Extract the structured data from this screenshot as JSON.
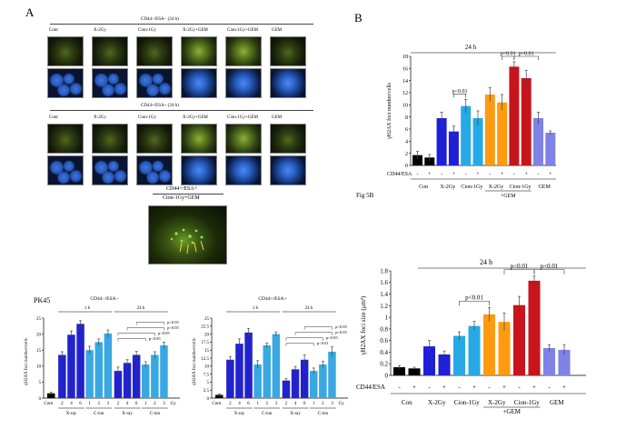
{
  "panelA": {
    "letter": "A",
    "group1_title": "CD44−/ESA− (24 h)",
    "group2_title": "CD44+/ESA+ (24 h)",
    "col_labels": [
      "Cont",
      "X-2Gy",
      "Cion-1Gy",
      "X-2Gy+GEM",
      "Cion-1Gy+GEM",
      "GEM"
    ],
    "big_caption_line1": "CD44+/ESA+",
    "big_caption_line2": "Cion-1Gy+GEM"
  },
  "pk45": {
    "label": "PK45",
    "left_title": "CD44−/ESA−",
    "right_title": "CD44+/ESA+",
    "time1": "1 h",
    "time2": "24 h",
    "ylabel": "γH2AX foci number/cells",
    "xgroups": [
      "X-ray",
      "C-ion",
      "X-ray",
      "C-ion"
    ],
    "control_label": "Cont",
    "gy_label": "Gy",
    "pval": "p<0.05",
    "pval_right": "p<0.01"
  },
  "panelB": {
    "letter": "B",
    "fig_label": "Fig 5B",
    "time_label": "24 h",
    "pm_label": "CD44/ESA",
    "top_ylabel": "γH2AX foci number/cells",
    "bottom_ylabel": "γH2AX foci size (μm²)",
    "groups": [
      "Con",
      "X-2Gy",
      "Cion-1Gy",
      "X-2Gy",
      "Cion-1Gy",
      "GEM"
    ],
    "gem_label": "+GEM",
    "pval": "p<0.01",
    "minus": "-",
    "plus": "+"
  },
  "chart_data": [
    {
      "type": "bar",
      "title": "24 h",
      "ylabel": "γH2AX foci number/cells",
      "ylim": [
        0,
        18
      ],
      "yticks": [
        0,
        2,
        4,
        6,
        8,
        10,
        12,
        14,
        16,
        18
      ],
      "categories": [
        "Con -",
        "Con +",
        "X-2Gy -",
        "X-2Gy +",
        "Cion-1Gy -",
        "Cion-1Gy +",
        "X-2Gy+GEM -",
        "X-2Gy+GEM +",
        "Cion-1Gy+GEM -",
        "Cion-1Gy+GEM +",
        "GEM -",
        "GEM +"
      ],
      "values": [
        1.7,
        1.3,
        7.8,
        5.6,
        9.8,
        7.8,
        11.7,
        10.4,
        16.3,
        14.4,
        7.8,
        5.4
      ],
      "errors": [
        0.6,
        0.5,
        1.0,
        0.9,
        1.1,
        1.2,
        1.1,
        1.3,
        0.8,
        1.3,
        1.0,
        0.3
      ],
      "colors": [
        "#000000",
        "#000000",
        "#1f1fd8",
        "#1f1fd8",
        "#27a9e6",
        "#27a9e6",
        "#ff9a11",
        "#ff9a11",
        "#c8141c",
        "#c8141c",
        "#7f82e6",
        "#7f82e6"
      ],
      "significance": [
        {
          "from": 3,
          "to": 4,
          "label": "p<0.01"
        },
        {
          "from": 7,
          "to": 8,
          "label": "p<0.01"
        },
        {
          "from": 8,
          "to": 10,
          "label": "p<0.01"
        }
      ],
      "grid": false
    },
    {
      "type": "bar",
      "title": "24 h",
      "ylabel": "γH2AX foci size (μm²)",
      "ylim": [
        0,
        1.8
      ],
      "yticks": [
        0,
        0.2,
        0.4,
        0.6,
        0.8,
        1,
        1.2,
        1.4,
        1.6,
        1.8
      ],
      "categories": [
        "Con -",
        "Con +",
        "X-2Gy -",
        "X-2Gy +",
        "Cion-1Gy -",
        "Cion-1Gy +",
        "X-2Gy+GEM -",
        "X-2Gy+GEM +",
        "Cion-1Gy+GEM -",
        "Cion-1Gy+GEM +",
        "GEM -",
        "GEM +"
      ],
      "values": [
        0.14,
        0.12,
        0.5,
        0.36,
        0.68,
        0.85,
        1.05,
        0.92,
        1.21,
        1.63,
        0.47,
        0.44
      ],
      "errors": [
        0.03,
        0.02,
        0.1,
        0.06,
        0.07,
        0.08,
        0.12,
        0.15,
        0.15,
        0.08,
        0.06,
        0.09
      ],
      "colors": [
        "#000000",
        "#000000",
        "#1f1fd8",
        "#1f1fd8",
        "#27a9e6",
        "#27a9e6",
        "#ff9a11",
        "#ff9a11",
        "#c8141c",
        "#c8141c",
        "#7f82e6",
        "#7f82e6"
      ],
      "significance": [
        {
          "from": 4,
          "to": 6,
          "label": "p<0.01"
        },
        {
          "from": 7,
          "to": 9,
          "label": "p<0.01"
        },
        {
          "from": 9,
          "to": 11,
          "label": "p<0.01"
        }
      ],
      "grid": false
    },
    {
      "type": "bar",
      "title": "CD44−/ESA−",
      "ylabel": "γH2AX foci number/cells",
      "ylim": [
        0,
        25
      ],
      "yticks": [
        0,
        5,
        10,
        15,
        20,
        25
      ],
      "categories": [
        "Cont",
        "2",
        "4",
        "6",
        "1",
        "2",
        "3",
        "2",
        "4",
        "6",
        "1",
        "2",
        "3"
      ],
      "values": [
        1.5,
        13.5,
        19.8,
        23.2,
        15.0,
        17.5,
        20.2,
        8.5,
        11.0,
        13.5,
        10.5,
        13.5,
        16.5
      ],
      "errors": [
        0.3,
        1.0,
        1.2,
        1.0,
        1.2,
        1.0,
        1.1,
        1.2,
        1.0,
        1.1,
        0.9,
        1.0,
        1.0
      ],
      "colors": [
        "#000000",
        "#2222cc",
        "#2222cc",
        "#2222cc",
        "#39a8e2",
        "#39a8e2",
        "#39a8e2",
        "#2222cc",
        "#2222cc",
        "#2222cc",
        "#39a8e2",
        "#39a8e2",
        "#39a8e2"
      ],
      "grid": false
    },
    {
      "type": "bar",
      "title": "CD44+/ESA+",
      "ylabel": "γH2AX foci number/cells",
      "ylim": [
        0,
        25
      ],
      "yticks": [
        0,
        2.5,
        5,
        7.5,
        10,
        12.5,
        15,
        17.5,
        20,
        22.5,
        25
      ],
      "categories": [
        "Cont",
        "2",
        "4",
        "6",
        "1",
        "2",
        "3",
        "2",
        "4",
        "6",
        "1",
        "2",
        "3"
      ],
      "values": [
        1.0,
        12.0,
        17.0,
        20.5,
        10.5,
        16.5,
        20.0,
        5.5,
        9.0,
        12.0,
        8.5,
        10.5,
        14.5
      ],
      "errors": [
        0.3,
        1.0,
        1.5,
        1.3,
        1.2,
        0.7,
        0.7,
        0.6,
        0.9,
        1.5,
        0.9,
        1.0,
        1.5
      ],
      "colors": [
        "#000000",
        "#2222cc",
        "#2222cc",
        "#2222cc",
        "#39a8e2",
        "#39a8e2",
        "#39a8e2",
        "#2222cc",
        "#2222cc",
        "#2222cc",
        "#39a8e2",
        "#39a8e2",
        "#39a8e2"
      ],
      "grid": false
    }
  ]
}
